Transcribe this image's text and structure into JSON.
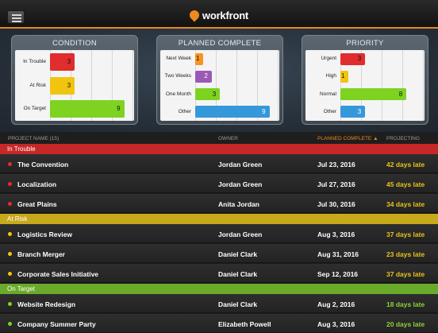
{
  "header": {
    "logo_text": "workfront",
    "menu_icon": "hamburger-icon"
  },
  "colors": {
    "accent": "#e7891e",
    "red": "#e02d2d",
    "yellow": "#f1c40f",
    "green": "#7ed321",
    "orange": "#f7941d",
    "purple": "#9b59b6",
    "blue": "#3498db"
  },
  "cards": [
    {
      "title": "CONDITION",
      "max": 10,
      "rows": [
        {
          "label": "In Trouble",
          "value": 3,
          "color": "#e02d2d"
        },
        {
          "label": "At Risk",
          "value": 3,
          "color": "#f1c40f"
        },
        {
          "label": "On Target",
          "value": 9,
          "color": "#7ed321"
        }
      ]
    },
    {
      "title": "PLANNED COMPLETE",
      "max": 10,
      "rows": [
        {
          "label": "Next Week",
          "value": 1,
          "color": "#f7941d"
        },
        {
          "label": "Two Weeks",
          "value": 2,
          "color": "#9b59b6"
        },
        {
          "label": "One Month",
          "value": 3,
          "color": "#7ed321"
        },
        {
          "label": "Other",
          "value": 9,
          "color": "#3498db"
        }
      ]
    },
    {
      "title": "PRIORITY",
      "max": 10,
      "rows": [
        {
          "label": "Urgent",
          "value": 3,
          "color": "#e02d2d"
        },
        {
          "label": "High",
          "value": 1,
          "color": "#f1c40f"
        },
        {
          "label": "Normal",
          "value": 8,
          "color": "#7ed321"
        },
        {
          "label": "Other",
          "value": 3,
          "color": "#3498db"
        }
      ]
    }
  ],
  "pager": {
    "pages": 3,
    "active": 1
  },
  "table": {
    "columns": {
      "name": "PROJECT NAME (15)",
      "owner": "OWNER",
      "planned": "PLANNED COMPLETE",
      "sort_icon": "caret-up-icon",
      "projecting": "PROJECTING"
    },
    "groups": [
      {
        "label": "In Trouble",
        "color": "#c62828",
        "dot": "#e02d2d",
        "rows": [
          {
            "name": "The Convention",
            "owner": "Jordan Green",
            "date": "Jul 23, 2016",
            "projecting": "42 days late"
          },
          {
            "name": "Localization",
            "owner": "Jordan Green",
            "date": "Jul 27, 2016",
            "projecting": "45 days late"
          },
          {
            "name": "Great Plains",
            "owner": "Anita Jordan",
            "date": "Jul 30, 2016",
            "projecting": "34 days late"
          }
        ]
      },
      {
        "label": "At Risk",
        "color": "#c8a91c",
        "dot": "#f1c40f",
        "rows": [
          {
            "name": "Logistics Review",
            "owner": "Jordan Green",
            "date": "Aug 3, 2016",
            "projecting": "37 days late"
          },
          {
            "name": "Branch Merger",
            "owner": "Daniel Clark",
            "date": "Aug 31, 2016",
            "projecting": "23 days late"
          },
          {
            "name": "Corporate Sales Initiative",
            "owner": "Daniel Clark",
            "date": "Sep 12, 2016",
            "projecting": "37 days late"
          }
        ]
      },
      {
        "label": "On Target",
        "color": "#6aaa2a",
        "dot": "#7ed321",
        "rows": [
          {
            "name": "Website Redesign",
            "owner": "Daniel Clark",
            "date": "Aug 2, 2016",
            "projecting": "18 days late"
          },
          {
            "name": "Company Summer Party",
            "owner": "Elizabeth Powell",
            "date": "Aug 3, 2016",
            "projecting": "20 days late"
          }
        ]
      }
    ]
  }
}
